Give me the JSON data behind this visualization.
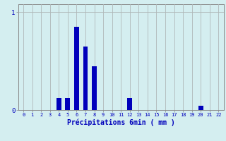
{
  "title": "",
  "xlabel": "Précipitations 6min ( mm )",
  "ylabel": "",
  "background_color": "#d4eef0",
  "bar_color": "#0000bb",
  "grid_color": "#b0b8b8",
  "axis_color": "#888888",
  "text_color": "#0000bb",
  "categories": [
    0,
    1,
    2,
    3,
    4,
    5,
    6,
    7,
    8,
    9,
    10,
    11,
    12,
    13,
    14,
    15,
    16,
    17,
    18,
    19,
    20,
    21,
    22
  ],
  "values": [
    0,
    0,
    0,
    0,
    0.12,
    0.12,
    0.85,
    0.65,
    0.45,
    0,
    0,
    0,
    0.12,
    0,
    0,
    0,
    0,
    0,
    0,
    0,
    0.04,
    0,
    0
  ],
  "yticks": [
    0,
    1
  ],
  "ylim": [
    0,
    1.08
  ],
  "xlim": [
    -0.6,
    22.6
  ]
}
